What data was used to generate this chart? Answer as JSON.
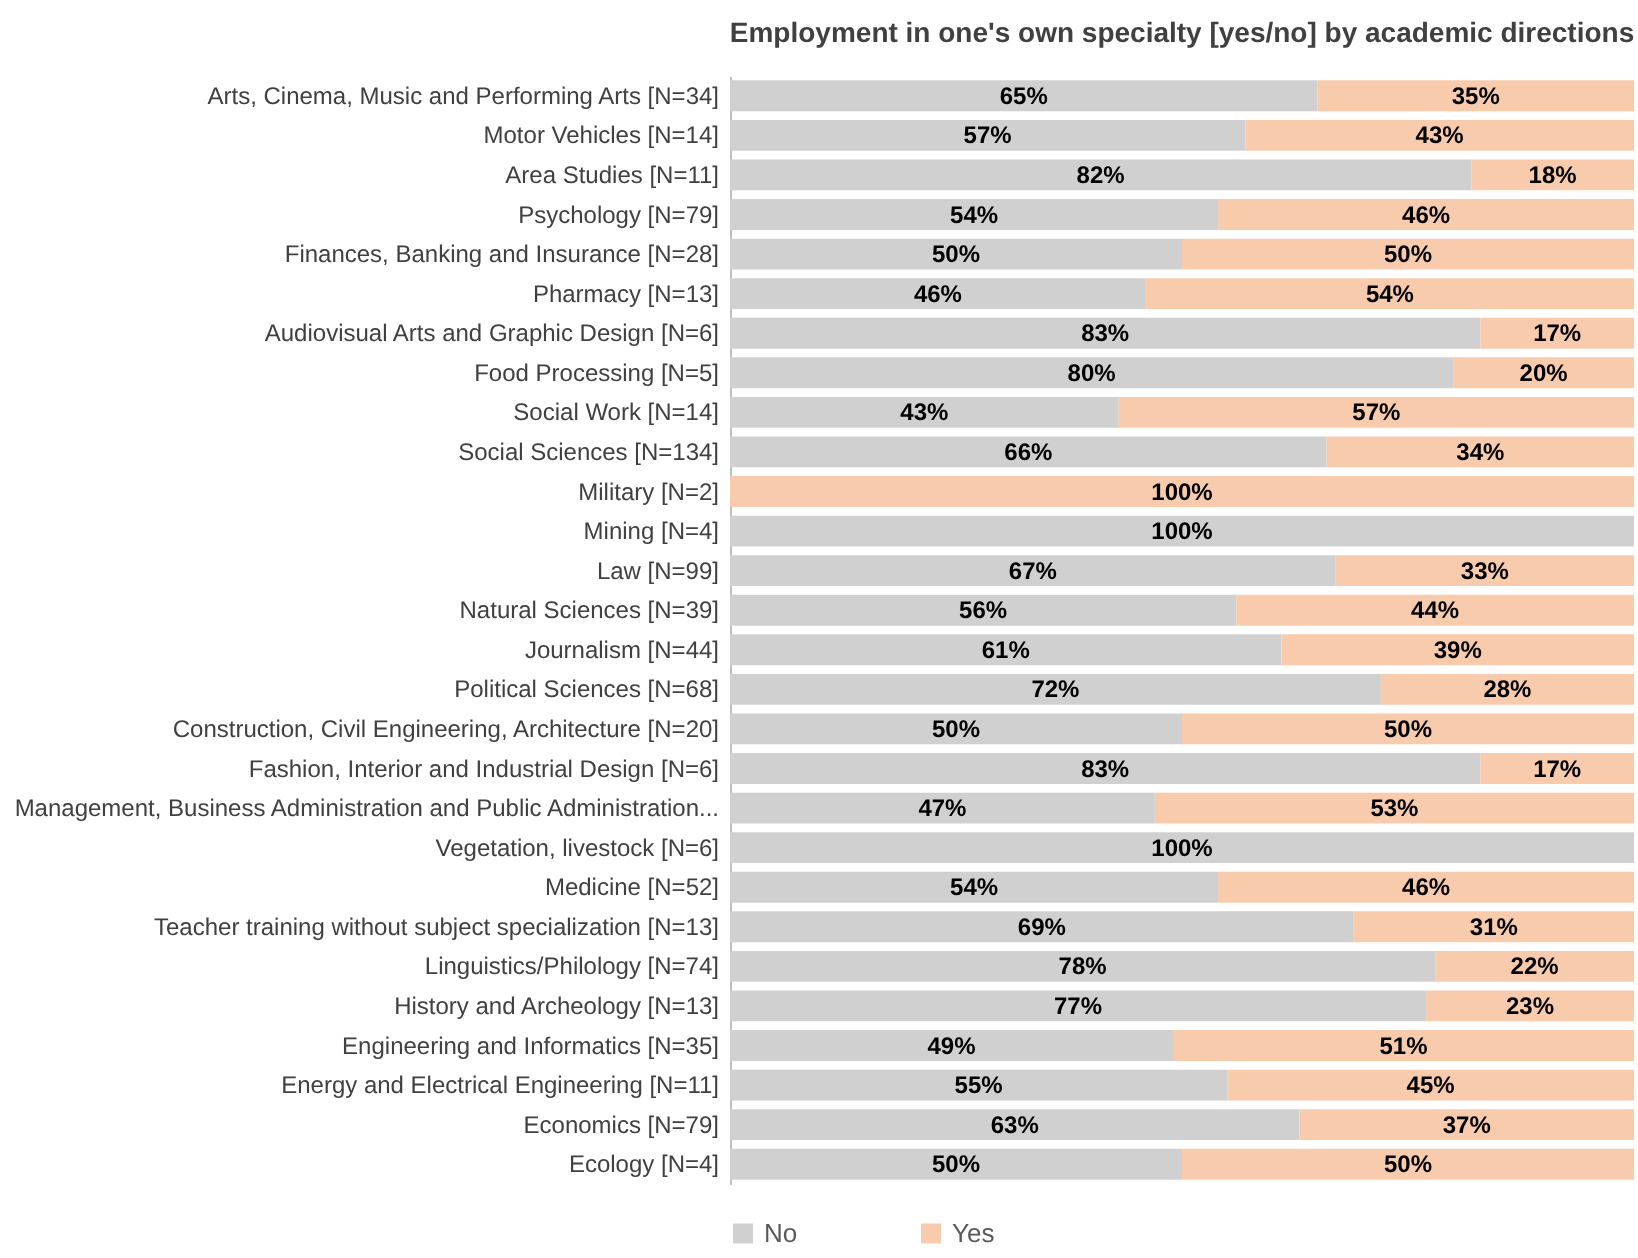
{
  "chart_data": {
    "type": "bar",
    "orientation": "horizontal",
    "stacked": true,
    "title": "Employment in one's own specialty [yes/no] by academic directions",
    "categories": [
      "Arts, Cinema, Music and Performing Arts [N=34]",
      "Motor Vehicles [N=14]",
      "Area Studies [N=11]",
      "Psychology [N=79]",
      "Finances, Banking and Insurance [N=28]",
      "Pharmacy [N=13]",
      "Audiovisual Arts and Graphic Design [N=6]",
      "Food Processing [N=5]",
      "Social Work [N=14]",
      "Social Sciences [N=134]",
      "Military [N=2]",
      "Mining [N=4]",
      "Law [N=99]",
      "Natural Sciences [N=39]",
      "Journalism [N=44]",
      "Political Sciences [N=68]",
      "Construction, Civil Engineering, Architecture [N=20]",
      "Fashion, Interior and Industrial Design [N=6]",
      "Management, Business Administration and Public Administration...",
      "Vegetation, livestock [N=6]",
      "Medicine [N=52]",
      "Teacher training without subject specialization [N=13]",
      "Linguistics/Philology [N=74]",
      "History and Archeology [N=13]",
      "Engineering and Informatics [N=35]",
      "Energy and Electrical Engineering [N=11]",
      "Economics [N=79]",
      "Ecology [N=4]"
    ],
    "series": [
      {
        "name": "No",
        "color": "#d0d0d0",
        "values": [
          65,
          57,
          82,
          54,
          50,
          46,
          83,
          80,
          43,
          66,
          0,
          100,
          67,
          56,
          61,
          72,
          50,
          83,
          47,
          100,
          54,
          69,
          78,
          77,
          49,
          55,
          63,
          50
        ],
        "value_labels": [
          "65%",
          "57%",
          "82%",
          "54%",
          "50%",
          "46%",
          "83%",
          "80%",
          "43%",
          "66%",
          null,
          "100%",
          "67%",
          "56%",
          "61%",
          "72%",
          "50%",
          "83%",
          "47%",
          "100%",
          "54%",
          "69%",
          "78%",
          "77%",
          "49%",
          "55%",
          "63%",
          "50%"
        ]
      },
      {
        "name": "Yes",
        "color": "#f8cbad",
        "values": [
          35,
          43,
          18,
          46,
          50,
          54,
          17,
          20,
          57,
          34,
          100,
          0,
          33,
          44,
          39,
          28,
          50,
          17,
          53,
          0,
          46,
          31,
          22,
          23,
          51,
          45,
          37,
          50
        ],
        "value_labels": [
          "35%",
          "43%",
          "18%",
          "46%",
          "50%",
          "54%",
          "17%",
          "20%",
          "57%",
          "34%",
          "100%",
          null,
          "33%",
          "44%",
          "39%",
          "28%",
          "50%",
          "17%",
          "53%",
          null,
          "46%",
          "31%",
          "22%",
          "23%",
          "51%",
          "45%",
          "37%",
          "50%"
        ]
      }
    ],
    "xlim": [
      0,
      100
    ],
    "tick_labels": "y",
    "grid": false,
    "legend": "bottom"
  }
}
